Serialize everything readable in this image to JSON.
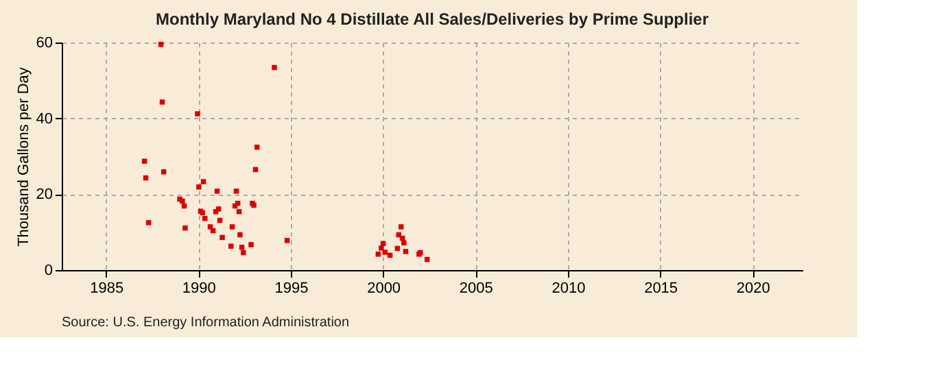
{
  "chart_data": {
    "type": "scatter",
    "title": "Monthly Maryland No 4 Distillate All Sales/Deliveries by Prime Supplier",
    "ylabel": "Thousand Gallons per Day",
    "annotations": [
      "Source: U.S. Energy Information Administration"
    ],
    "x": [
      1987.08,
      1987.15,
      1987.3,
      1987.97,
      1988.04,
      1988.12,
      1988.99,
      1989.13,
      1989.23,
      1989.28,
      1989.95,
      1990.02,
      1990.12,
      1990.22,
      1990.27,
      1990.35,
      1990.64,
      1990.79,
      1990.94,
      1991.01,
      1991.09,
      1991.16,
      1991.29,
      1991.76,
      1991.83,
      1991.98,
      1992.05,
      1992.13,
      1992.2,
      1992.25,
      1992.35,
      1992.43,
      1992.85,
      1992.92,
      1993.0,
      1993.09,
      1993.17,
      1994.11,
      1994.8,
      1999.73,
      1999.9,
      2000.0,
      2000.1,
      2000.37,
      2000.77,
      2000.84,
      2000.97,
      2001.04,
      2001.12,
      2001.22,
      2001.94,
      2002.01,
      2002.38
    ],
    "series": [
      {
        "color": "#dd0000",
        "values": [
          28.7,
          24.3,
          12.5,
          59.5,
          44.3,
          25.9,
          18.7,
          18.2,
          16.9,
          11.1,
          41.2,
          21.9,
          15.5,
          15.1,
          23.3,
          13.6,
          11.4,
          10.4,
          15.4,
          20.8,
          16.1,
          13.1,
          8.6,
          6.3,
          11.4,
          16.9,
          20.8,
          17.6,
          15.4,
          9.3,
          6.0,
          4.6,
          6.7,
          17.6,
          17.1,
          26.5,
          32.4,
          53.4,
          7.8,
          4.2,
          5.8,
          7.0,
          4.7,
          3.9,
          5.7,
          9.3,
          11.4,
          8.4,
          7.2,
          4.9,
          4.2,
          4.6,
          2.8
        ]
      }
    ],
    "xlim": [
      1982.6,
      2022.7
    ],
    "xticks": [
      1985,
      1990,
      1995,
      2000,
      2005,
      2010,
      2015,
      2020
    ],
    "ylim": [
      0,
      60
    ],
    "yticks": [
      0,
      20,
      40,
      60
    ],
    "grid": true,
    "marker": "square",
    "legend": false
  }
}
